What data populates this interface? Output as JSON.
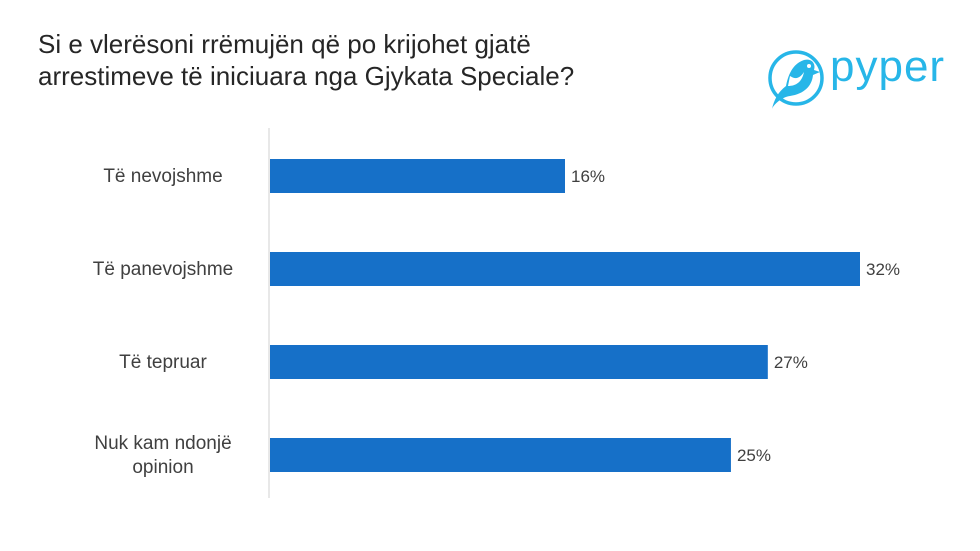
{
  "title": {
    "line1": "Si e vlerësoni rrëmujën që po krijohet gjatë",
    "line2": "arrestimeve të iniciuara nga Gjykata Speciale?"
  },
  "logo": {
    "text": "pyper",
    "icon": "bird-icon",
    "color": "#27b6e8"
  },
  "chart_data": {
    "type": "bar",
    "orientation": "horizontal",
    "title": "Si e vlerësoni rrëmujën që po krijohet gjatë arrestimeve të iniciuara nga Gjykata Speciale?",
    "categories": [
      [
        "Të nevojshme"
      ],
      [
        "Të panevojshme"
      ],
      [
        "Të tepruar"
      ],
      [
        "Nuk kam ndonjë",
        "opinion"
      ]
    ],
    "values": [
      16,
      32,
      27,
      25
    ],
    "value_labels": [
      "16%",
      "32%",
      "27%",
      "25%"
    ],
    "unit": "%",
    "xlim": [
      0,
      32
    ],
    "bar_color": "#1670c8",
    "axis_color": "#d0d0d0",
    "grid": false,
    "legend": "none"
  }
}
